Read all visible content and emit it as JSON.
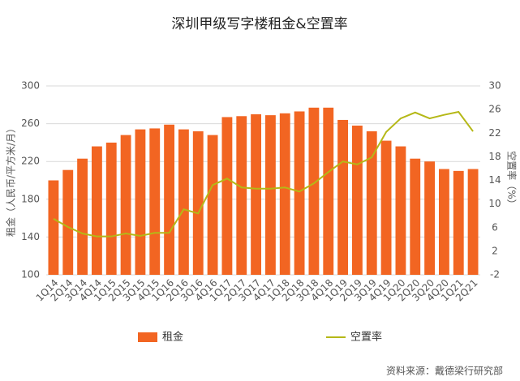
{
  "chart_data": {
    "type": "bar",
    "title": "深圳甲级写字楼租金&空置率",
    "y_label": "租金（人民币/平方米/月）",
    "y2_label": "空置率（%）",
    "source": "资料来源：戴德梁行研究部",
    "categories": [
      "1Q14",
      "2Q14",
      "3Q14",
      "4Q14",
      "1Q15",
      "2Q15",
      "3Q15",
      "4Q15",
      "1Q16",
      "2Q16",
      "3Q16",
      "4Q16",
      "1Q17",
      "2Q17",
      "3Q17",
      "4Q17",
      "1Q18",
      "2Q18",
      "3Q18",
      "4Q18",
      "1Q19",
      "2Q19",
      "3Q19",
      "4Q19",
      "1Q20",
      "2Q20",
      "3Q20",
      "4Q20",
      "1Q21",
      "2Q21"
    ],
    "series": [
      {
        "name": "租金",
        "type": "bar",
        "color": "#f26522",
        "values": [
          200,
          211,
          223,
          236,
          240,
          248,
          254,
          255,
          259,
          254,
          252,
          248,
          267,
          268,
          270,
          269,
          271,
          273,
          277,
          277,
          264,
          258,
          252,
          242,
          236,
          223,
          220,
          212,
          210,
          212
        ]
      },
      {
        "name": "空置率",
        "type": "line",
        "axis": "y2",
        "color": "#b5b817",
        "values": [
          7.5,
          6.1,
          5.0,
          4.5,
          4.5,
          5.0,
          4.6,
          5.1,
          5.1,
          9.1,
          8.4,
          13.2,
          14.3,
          12.8,
          12.6,
          12.6,
          12.8,
          12.1,
          13.5,
          15.4,
          17.2,
          16.7,
          17.9,
          22.2,
          24.5,
          25.5,
          24.5,
          25.1,
          25.6,
          22.3
        ]
      }
    ],
    "ylim": [
      100,
      300
    ],
    "yticks": [
      100,
      140,
      180,
      220,
      260,
      300
    ],
    "y2lim": [
      -2,
      30
    ],
    "y2ticks": [
      -2,
      2,
      6,
      10,
      14,
      18,
      22,
      26,
      30
    ],
    "grid": true
  }
}
